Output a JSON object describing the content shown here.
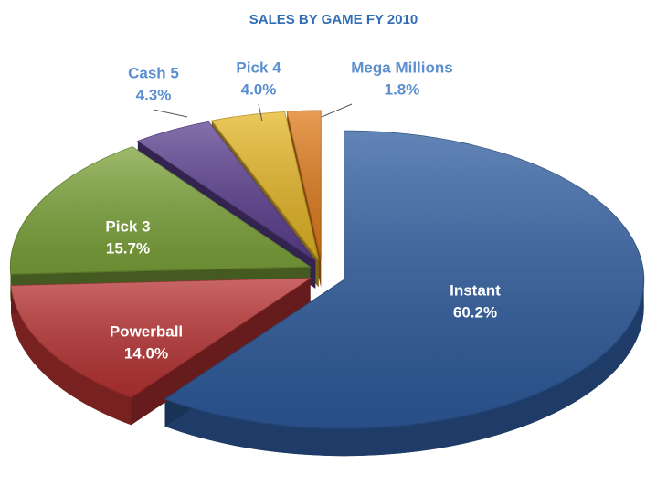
{
  "chart_data": {
    "type": "pie",
    "title": "SALES BY GAME FY 2010",
    "categories": [
      "Instant",
      "Powerball",
      "Pick 3",
      "Cash 5",
      "Pick 4",
      "Mega Millions"
    ],
    "values": [
      60.2,
      14.0,
      15.7,
      4.3,
      4.0,
      1.8
    ],
    "value_labels": [
      "60.2%",
      "14.0%",
      "15.7%",
      "4.3%",
      "4.0%",
      "1.8%"
    ],
    "colors": [
      "#2e5c9f",
      "#b93333",
      "#7da43a",
      "#5c3f90",
      "#e6b726",
      "#e07c1b"
    ]
  }
}
